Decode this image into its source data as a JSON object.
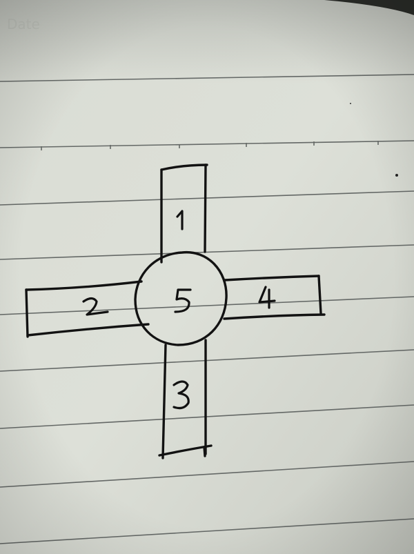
{
  "scene": {
    "paper_color": "#dcdfd6",
    "ink_color": "#111111",
    "rule_line_color": "#5d6160",
    "labels": [
      {
        "id": "arm-top",
        "text": "1"
      },
      {
        "id": "arm-left",
        "text": "2"
      },
      {
        "id": "arm-bottom",
        "text": "3"
      },
      {
        "id": "arm-right",
        "text": "4"
      },
      {
        "id": "center-circle",
        "text": "5"
      }
    ]
  }
}
